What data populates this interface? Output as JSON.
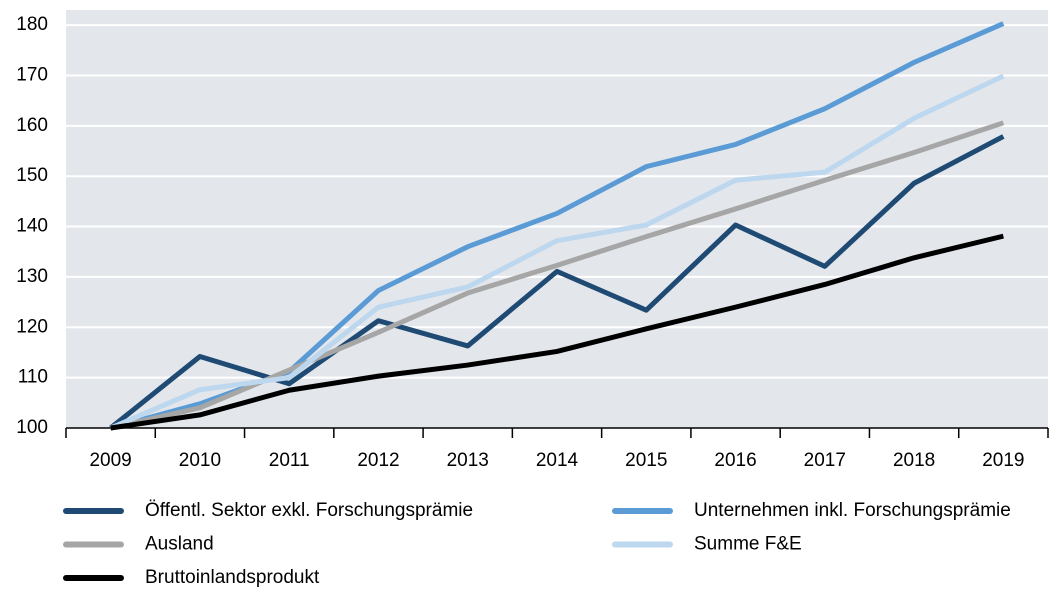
{
  "chart_data": {
    "type": "line",
    "categories": [
      "2009",
      "2010",
      "2011",
      "2012",
      "2013",
      "2014",
      "2015",
      "2016",
      "2017",
      "2018",
      "2019"
    ],
    "series": [
      {
        "name": "Öffentl. Sektor exkl. Forschungsprämie",
        "color": "#1f4a73",
        "values": [
          100,
          114.2,
          108.8,
          121.3,
          116.3,
          131.1,
          123.4,
          140.3,
          132.1,
          148.6,
          157.9
        ]
      },
      {
        "name": "Unternehmen inkl. Forschungsprämie",
        "color": "#5b9bd5",
        "values": [
          100,
          104.8,
          111.2,
          127.3,
          136,
          142.6,
          151.9,
          156.3,
          163.4,
          172.6,
          180.3
        ]
      },
      {
        "name": "Ausland",
        "color": "#a6a6a6",
        "values": [
          100,
          104,
          111.5,
          119,
          126.8,
          132.3,
          138,
          143.5,
          149.2,
          154.7,
          160.6
        ]
      },
      {
        "name": "Summe F&E",
        "color": "#bdd7ee",
        "values": [
          100,
          107.6,
          110,
          124,
          128,
          137.2,
          140.3,
          149.2,
          150.8,
          161.5,
          169.9
        ]
      },
      {
        "name": "Bruttoinlandsprodukt",
        "color": "#000000",
        "values": [
          100,
          102.6,
          107.5,
          110.3,
          112.5,
          115.2,
          119.7,
          124,
          128.5,
          133.8,
          138.1
        ]
      }
    ],
    "ylim": [
      100,
      183
    ],
    "yticks": [
      100,
      110,
      120,
      130,
      140,
      150,
      160,
      170,
      180
    ],
    "grid": true
  }
}
